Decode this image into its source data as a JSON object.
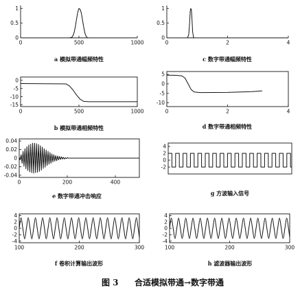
{
  "figure": {
    "number": "图 3",
    "title": "合适模拟带通→数字带通"
  },
  "chart_data": [
    {
      "type": "line",
      "title": "a 模拟带通幅频特性",
      "xlim": [
        0,
        1000
      ],
      "ylim": [
        0,
        1.1
      ],
      "xticks": [
        0,
        500,
        1000
      ],
      "yticks": [
        1,
        0.5,
        0
      ],
      "x": [
        0,
        420,
        440,
        450,
        460,
        470,
        480,
        490,
        500,
        510,
        520,
        530,
        540,
        550,
        560,
        570,
        580,
        1000
      ],
      "y": [
        0,
        0,
        0.02,
        0.08,
        0.2,
        0.4,
        0.65,
        0.88,
        1,
        0.97,
        0.85,
        0.62,
        0.38,
        0.18,
        0.06,
        0.01,
        0,
        0
      ]
    },
    {
      "type": "line",
      "title": "b 模拟带通相频特性",
      "xlim": [
        0,
        1000
      ],
      "ylim": [
        -16,
        2
      ],
      "xticks": [
        0,
        500,
        1000
      ],
      "yticks": [
        0,
        -5,
        -10,
        -15
      ],
      "x": [
        0,
        390,
        420,
        450,
        480,
        510,
        540,
        580,
        1000
      ],
      "y": [
        -2,
        -2.2,
        -3.5,
        -6,
        -9,
        -11.5,
        -12.8,
        -13,
        -13
      ]
    },
    {
      "type": "line",
      "title": "c 数字带通幅频特性",
      "xlim": [
        0,
        4
      ],
      "ylim": [
        0,
        1.1
      ],
      "xticks": [
        0,
        2,
        4
      ],
      "yticks": [
        1,
        0.5,
        0
      ],
      "x": [
        0,
        0.68,
        0.72,
        0.75,
        0.77,
        0.79,
        0.81,
        0.83,
        0.85,
        0.88,
        0.9,
        3.14
      ],
      "y": [
        0,
        0,
        0.1,
        0.5,
        0.9,
        1,
        0.95,
        0.6,
        0.2,
        0.02,
        0,
        0
      ]
    },
    {
      "type": "line",
      "title": "d 数字带通相频特性",
      "xlim": [
        0,
        4
      ],
      "ylim": [
        -12,
        6.5
      ],
      "xticks": [
        0,
        2,
        4
      ],
      "yticks": [
        5,
        0,
        -5,
        -10
      ],
      "x": [
        0,
        0.3,
        0.5,
        0.6,
        0.7,
        0.8,
        0.9,
        1.1,
        2,
        2.8,
        3.14
      ],
      "y": [
        4.6,
        4.5,
        4.2,
        3,
        0,
        -3,
        -4.3,
        -4.6,
        -4.5,
        -4.1,
        -3.7
      ]
    },
    {
      "type": "line",
      "title": "e 数字带通冲击响应",
      "xlim": [
        0,
        500
      ],
      "ylim": [
        -0.045,
        0.045
      ],
      "xticks": [
        0,
        200,
        400
      ],
      "yticks": [
        0.04,
        0.02,
        0,
        -0.02,
        -0.04
      ],
      "x": [
        0,
        4,
        8,
        12,
        16,
        20,
        24,
        28,
        32,
        36,
        40,
        44,
        48,
        52,
        56,
        60,
        64,
        68,
        72,
        76,
        80,
        84,
        88,
        92,
        96,
        100,
        104,
        108,
        112,
        116,
        120,
        124,
        128,
        132,
        136,
        140,
        144,
        148,
        152,
        156,
        160,
        164,
        168,
        172,
        176,
        180,
        184,
        188,
        192,
        196,
        200,
        204,
        500
      ],
      "y": [
        0,
        -0.004,
        0.008,
        -0.012,
        0.016,
        -0.019,
        0.022,
        -0.025,
        0.027,
        -0.029,
        0.031,
        -0.032,
        0.033,
        -0.034,
        0.035,
        -0.035,
        0.035,
        -0.034,
        0.034,
        -0.033,
        0.032,
        -0.031,
        0.029,
        -0.028,
        0.026,
        -0.024,
        0.022,
        -0.021,
        0.019,
        -0.017,
        0.016,
        -0.014,
        0.013,
        -0.012,
        0.01,
        -0.009,
        0.008,
        -0.007,
        0.006,
        -0.006,
        0.005,
        -0.004,
        0.004,
        -0.003,
        0.003,
        -0.002,
        0.002,
        -0.002,
        0.001,
        -0.001,
        0.001,
        0,
        0
      ]
    },
    {
      "type": "line",
      "title": "f 卷积计算输出波形",
      "xlim": [
        100,
        300
      ],
      "ylim": [
        -4.5,
        4.5
      ],
      "xticks": [
        100,
        200,
        300
      ],
      "yticks": [
        4,
        2,
        0,
        -2,
        -4
      ],
      "x": [
        100,
        103,
        106,
        109,
        112,
        115,
        118,
        121,
        124,
        127,
        130,
        133,
        136,
        139,
        142,
        145,
        148,
        151,
        154,
        157,
        160,
        163,
        166,
        169,
        172,
        175,
        178,
        181,
        184,
        187,
        190,
        193,
        196,
        199,
        202,
        205,
        208,
        211,
        214,
        217,
        220,
        223,
        226,
        229,
        232,
        235,
        238,
        241,
        244,
        247,
        250,
        253,
        256,
        259,
        262,
        265,
        268,
        271,
        274,
        277,
        280,
        283,
        286,
        289,
        292,
        295,
        298,
        300
      ],
      "y": [
        0,
        3.3,
        0,
        -3.3,
        0,
        3.3,
        0,
        -3.3,
        0,
        3.3,
        0,
        -3.3,
        0,
        3.3,
        0,
        -3.3,
        0,
        3.3,
        0,
        -3.3,
        0,
        3.3,
        0,
        -3.3,
        0,
        3.3,
        0,
        -3.3,
        0,
        3.3,
        0,
        -3.3,
        0,
        3.3,
        0,
        -3.3,
        0,
        3.3,
        0,
        -3.3,
        0,
        3.3,
        0,
        -3.3,
        0,
        3.3,
        0,
        -3.3,
        0,
        3.3,
        0,
        -3.3,
        0,
        3.3,
        0,
        -3.3,
        0,
        3.3,
        0,
        -3.3,
        0,
        3.3,
        0,
        -3.3,
        0,
        3.3,
        0,
        -2.9
      ]
    },
    {
      "type": "line",
      "title": "g 方波输入信号",
      "xlim": [
        100,
        300
      ],
      "ylim": [
        -4,
        5
      ],
      "xticks": [],
      "yticks": [
        4,
        2,
        0,
        -2
      ],
      "x": [
        100,
        106,
        106,
        112,
        112,
        118,
        118,
        124,
        124,
        130,
        130,
        136,
        136,
        142,
        142,
        148,
        148,
        154,
        154,
        160,
        160,
        166,
        166,
        172,
        172,
        178,
        178,
        184,
        184,
        190,
        190,
        196,
        196,
        202,
        202,
        208,
        208,
        214,
        214,
        220,
        220,
        226,
        226,
        232,
        232,
        238,
        238,
        244,
        244,
        250,
        250,
        256,
        256,
        262,
        262,
        268,
        268,
        274,
        274,
        280,
        280,
        286,
        286,
        292,
        292,
        298,
        298,
        300
      ],
      "y": [
        2,
        2,
        -2,
        -2,
        2,
        2,
        -2,
        -2,
        2,
        2,
        -2,
        -2,
        2,
        2,
        -2,
        -2,
        2,
        2,
        -2,
        -2,
        2,
        2,
        -2,
        -2,
        2,
        2,
        -2,
        -2,
        2,
        2,
        -2,
        -2,
        2,
        2,
        -2,
        -2,
        2,
        2,
        -2,
        -2,
        2,
        2,
        -2,
        -2,
        2,
        2,
        -2,
        -2,
        2,
        2,
        -2,
        -2,
        2,
        2,
        -2,
        -2,
        2,
        2,
        -2,
        -2,
        2,
        2,
        -2,
        -2,
        2,
        2,
        -2,
        -2
      ]
    },
    {
      "type": "line",
      "title": "h 滤波器输出波形",
      "xlim": [
        100,
        300
      ],
      "ylim": [
        -4.5,
        4.5
      ],
      "xticks": [
        100,
        200,
        300
      ],
      "yticks": [
        4,
        2,
        0,
        -2,
        -4
      ],
      "x": [
        100,
        103,
        106,
        109,
        112,
        115,
        118,
        121,
        124,
        127,
        130,
        133,
        136,
        139,
        142,
        145,
        148,
        151,
        154,
        157,
        160,
        163,
        166,
        169,
        172,
        175,
        178,
        181,
        184,
        187,
        190,
        193,
        196,
        199,
        202,
        205,
        208,
        211,
        214,
        217,
        220,
        223,
        226,
        229,
        232,
        235,
        238,
        241,
        244,
        247,
        250,
        253,
        256,
        259,
        262,
        265,
        268,
        271,
        274,
        277,
        280,
        283,
        286,
        289,
        292,
        295,
        298,
        300
      ],
      "y": [
        0,
        3.2,
        0,
        -3.2,
        0,
        3.2,
        0,
        -3.2,
        0,
        3.2,
        0,
        -3.2,
        0,
        3.2,
        0,
        -3.2,
        0,
        3.2,
        0,
        -3.2,
        0,
        3.2,
        0,
        -3.2,
        0,
        3.2,
        0,
        -3.2,
        0,
        3.2,
        0,
        -3.2,
        0,
        3.2,
        0,
        -3.2,
        0,
        3.2,
        0,
        -3.2,
        0,
        3.2,
        0,
        -3.2,
        0,
        3.2,
        0,
        -3.2,
        0,
        3.2,
        0,
        -3.2,
        0,
        3.2,
        0,
        -3.2,
        0,
        3.2,
        0,
        -3.2,
        0,
        3.2,
        0,
        -3.2,
        0,
        3.2,
        0,
        -2.8
      ]
    }
  ]
}
